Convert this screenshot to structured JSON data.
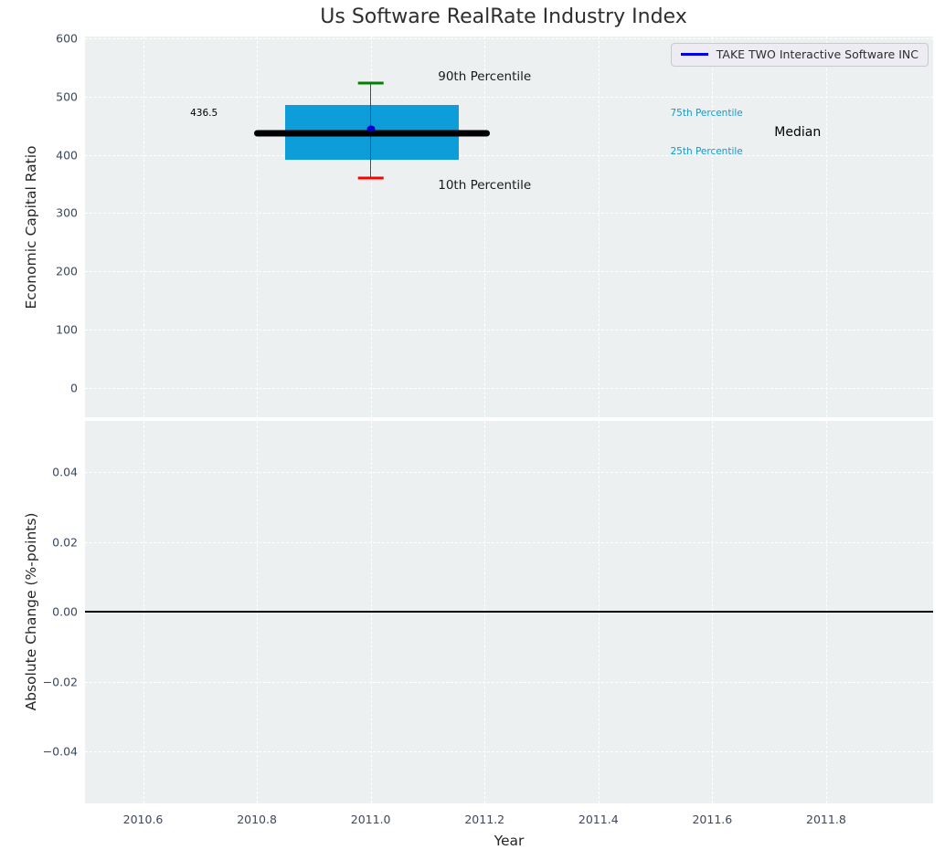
{
  "figure": {
    "title": "Us Software RealRate Industry Index",
    "background": "#ffffff",
    "axes_background": "#edf0f1",
    "grid_color": "#ffffff",
    "tick_color": "#3a4860"
  },
  "legend": {
    "label": "TAKE TWO Interactive Software INC",
    "line_color": "#0000ee",
    "position": "upper right"
  },
  "chart_data": [
    {
      "type": "box",
      "title": "Us Software RealRate Industry Index",
      "ylabel": "Economic Capital Ratio",
      "ylim": [
        -50,
        603
      ],
      "yticks": [
        600,
        500,
        400,
        300,
        200,
        100,
        0
      ],
      "ytick_labels": [
        "600",
        "500",
        "400",
        "300",
        "200",
        "100",
        "0"
      ],
      "grid": "white-dashed",
      "box": {
        "x_center": 2011.0,
        "x_range": [
          2010.85,
          2011.155
        ],
        "median_x_range": [
          2010.795,
          2011.21
        ],
        "cap_half_width": 0.023,
        "p10": 360,
        "p25": 392,
        "median": 436.5,
        "p75": 485,
        "p90": 523,
        "company_value": 445,
        "fill_color": "#0d9dd8",
        "median_color": "#000000",
        "whisker_color": "#4a4a4a",
        "p90_cap_color": "#008000",
        "p10_cap_color": "#ff0000",
        "company_marker_color": "#0000cd"
      },
      "annotations": [
        {
          "name": "median-value-label",
          "text": "436.5",
          "x": 2010.707,
          "y": 472,
          "color": "#000000",
          "size": 10.5
        },
        {
          "name": "p90-label",
          "text": "90th Percentile",
          "x": 2011.2,
          "y": 534,
          "color": "#1a1a1a",
          "size": 13.5
        },
        {
          "name": "p10-label",
          "text": "10th Percentile",
          "x": 2011.2,
          "y": 348,
          "color": "#1a1a1a",
          "size": 13.5
        },
        {
          "name": "p75-label",
          "text": "75th Percentile",
          "x": 2011.59,
          "y": 472,
          "color": "#1699c8",
          "size": 10.5
        },
        {
          "name": "p25-label",
          "text": "25th Percentile",
          "x": 2011.59,
          "y": 405,
          "color": "#1699c8",
          "size": 10.5
        },
        {
          "name": "median-label",
          "text": "Median",
          "x": 2011.75,
          "y": 439,
          "color": "#000000",
          "size": 14
        }
      ]
    },
    {
      "type": "line",
      "ylabel": "Absolute Change (%-points)",
      "xlabel": "Year",
      "xlim": [
        2010.498,
        2011.988
      ],
      "ylim": [
        -0.0549,
        0.0547
      ],
      "yticks": [
        0.04,
        0.02,
        0.0,
        -0.02,
        -0.04
      ],
      "ytick_labels": [
        "0.04",
        "0.02",
        "0.00",
        "−0.02",
        "−0.04"
      ],
      "xticks": [
        2010.6,
        2010.8,
        2011.0,
        2011.2,
        2011.4,
        2011.6,
        2011.8
      ],
      "xtick_labels": [
        "2010.6",
        "2010.8",
        "2011.0",
        "2011.2",
        "2011.4",
        "2011.6",
        "2011.8"
      ],
      "zero_line": {
        "y": 0.0,
        "color": "#000000"
      }
    }
  ]
}
